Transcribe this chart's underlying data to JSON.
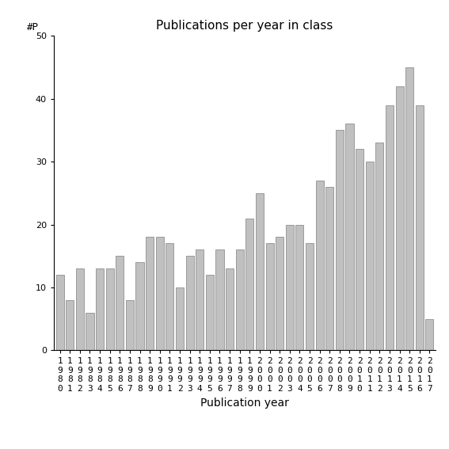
{
  "title": "Publications per year in class",
  "xlabel": "Publication year",
  "ylabel": "#P",
  "years": [
    1980,
    1981,
    1982,
    1983,
    1984,
    1985,
    1986,
    1987,
    1988,
    1989,
    1990,
    1991,
    1992,
    1993,
    1994,
    1995,
    1996,
    1997,
    1998,
    1999,
    2000,
    2001,
    2002,
    2003,
    2004,
    2005,
    2006,
    2007,
    2008,
    2009,
    2010,
    2011,
    2012,
    2013,
    2014,
    2015,
    2016,
    2017
  ],
  "values": [
    12,
    8,
    13,
    6,
    13,
    13,
    15,
    8,
    14,
    18,
    18,
    17,
    10,
    15,
    16,
    12,
    16,
    13,
    16,
    21,
    25,
    17,
    18,
    20,
    20,
    17,
    27,
    26,
    35,
    36,
    32,
    30,
    33,
    39,
    42,
    45,
    39,
    5
  ],
  "bar_color": "#c0c0c0",
  "bar_edgecolor": "#808080",
  "ylim": [
    0,
    50
  ],
  "yticks": [
    0,
    10,
    20,
    30,
    40,
    50
  ],
  "background_color": "#ffffff",
  "title_fontsize": 11,
  "axis_label_fontsize": 10,
  "tick_fontsize": 8
}
